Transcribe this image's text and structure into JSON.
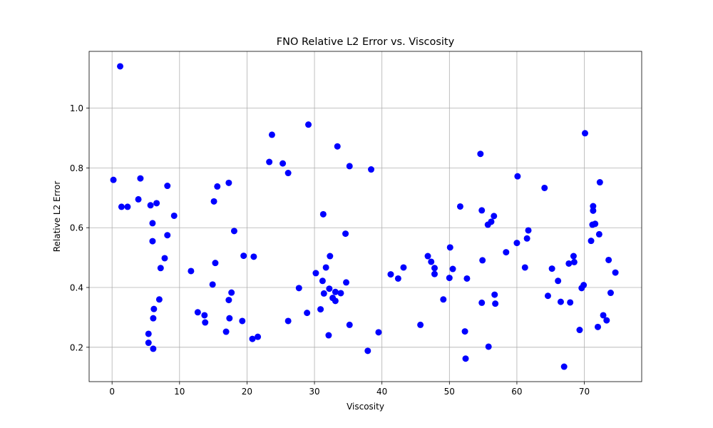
{
  "chart_data": {
    "type": "scatter",
    "title": "FNO Relative L2 Error vs. Viscosity",
    "xlabel": "Viscosity",
    "ylabel": "Relative L2 Error",
    "xlim": [
      -3.4,
      78.5
    ],
    "ylim": [
      0.085,
      1.19
    ],
    "xticks": [
      0,
      10,
      20,
      30,
      40,
      50,
      60,
      70
    ],
    "yticks": [
      0.2,
      0.4,
      0.6,
      0.8,
      1.0
    ],
    "xtick_labels": [
      "0",
      "10",
      "20",
      "30",
      "40",
      "50",
      "60",
      "70"
    ],
    "ytick_labels": [
      "0.2",
      "0.4",
      "0.6",
      "0.8",
      "1.0"
    ],
    "grid": true,
    "marker_color": "#0000ff",
    "points": [
      [
        0.2,
        0.76
      ],
      [
        1.2,
        1.14
      ],
      [
        1.4,
        0.67
      ],
      [
        2.3,
        0.67
      ],
      [
        3.9,
        0.695
      ],
      [
        4.2,
        0.765
      ],
      [
        5.4,
        0.245
      ],
      [
        5.4,
        0.215
      ],
      [
        5.7,
        0.675
      ],
      [
        6.0,
        0.615
      ],
      [
        6.0,
        0.555
      ],
      [
        6.1,
        0.195
      ],
      [
        6.1,
        0.297
      ],
      [
        6.2,
        0.328
      ],
      [
        6.6,
        0.682
      ],
      [
        7.0,
        0.36
      ],
      [
        7.2,
        0.465
      ],
      [
        7.8,
        0.498
      ],
      [
        8.2,
        0.74
      ],
      [
        8.2,
        0.575
      ],
      [
        9.2,
        0.64
      ],
      [
        11.7,
        0.455
      ],
      [
        12.7,
        0.317
      ],
      [
        13.7,
        0.307
      ],
      [
        13.8,
        0.283
      ],
      [
        14.9,
        0.41
      ],
      [
        15.1,
        0.688
      ],
      [
        15.3,
        0.482
      ],
      [
        15.6,
        0.738
      ],
      [
        16.9,
        0.252
      ],
      [
        17.3,
        0.75
      ],
      [
        17.3,
        0.358
      ],
      [
        17.4,
        0.297
      ],
      [
        17.7,
        0.383
      ],
      [
        18.1,
        0.589
      ],
      [
        19.3,
        0.288
      ],
      [
        19.5,
        0.506
      ],
      [
        20.8,
        0.228
      ],
      [
        21.0,
        0.503
      ],
      [
        21.6,
        0.235
      ],
      [
        23.3,
        0.82
      ],
      [
        23.7,
        0.911
      ],
      [
        25.3,
        0.815
      ],
      [
        26.1,
        0.783
      ],
      [
        26.1,
        0.288
      ],
      [
        27.7,
        0.398
      ],
      [
        28.9,
        0.315
      ],
      [
        29.1,
        0.945
      ],
      [
        30.2,
        0.448
      ],
      [
        30.9,
        0.327
      ],
      [
        31.2,
        0.422
      ],
      [
        31.3,
        0.645
      ],
      [
        31.4,
        0.38
      ],
      [
        31.7,
        0.467
      ],
      [
        32.1,
        0.24
      ],
      [
        32.2,
        0.396
      ],
      [
        32.3,
        0.505
      ],
      [
        32.7,
        0.365
      ],
      [
        33.1,
        0.385
      ],
      [
        33.1,
        0.355
      ],
      [
        33.4,
        0.872
      ],
      [
        33.9,
        0.381
      ],
      [
        34.6,
        0.58
      ],
      [
        34.7,
        0.417
      ],
      [
        35.2,
        0.806
      ],
      [
        35.2,
        0.275
      ],
      [
        37.9,
        0.188
      ],
      [
        38.4,
        0.795
      ],
      [
        39.5,
        0.25
      ],
      [
        41.3,
        0.444
      ],
      [
        42.4,
        0.43
      ],
      [
        43.2,
        0.467
      ],
      [
        45.7,
        0.275
      ],
      [
        46.8,
        0.505
      ],
      [
        47.3,
        0.486
      ],
      [
        47.8,
        0.465
      ],
      [
        47.8,
        0.445
      ],
      [
        49.1,
        0.36
      ],
      [
        50.0,
        0.432
      ],
      [
        50.1,
        0.534
      ],
      [
        50.5,
        0.462
      ],
      [
        51.6,
        0.671
      ],
      [
        52.3,
        0.253
      ],
      [
        52.4,
        0.162
      ],
      [
        52.6,
        0.43
      ],
      [
        54.6,
        0.847
      ],
      [
        54.8,
        0.658
      ],
      [
        54.8,
        0.349
      ],
      [
        54.9,
        0.491
      ],
      [
        55.7,
        0.61
      ],
      [
        55.8,
        0.202
      ],
      [
        56.2,
        0.62
      ],
      [
        56.6,
        0.639
      ],
      [
        56.7,
        0.376
      ],
      [
        56.8,
        0.346
      ],
      [
        58.4,
        0.518
      ],
      [
        60.0,
        0.549
      ],
      [
        60.1,
        0.772
      ],
      [
        61.2,
        0.467
      ],
      [
        61.5,
        0.564
      ],
      [
        61.7,
        0.591
      ],
      [
        64.1,
        0.733
      ],
      [
        64.6,
        0.372
      ],
      [
        65.2,
        0.463
      ],
      [
        66.1,
        0.422
      ],
      [
        66.5,
        0.352
      ],
      [
        67.0,
        0.135
      ],
      [
        67.7,
        0.48
      ],
      [
        67.9,
        0.35
      ],
      [
        68.4,
        0.505
      ],
      [
        68.5,
        0.485
      ],
      [
        69.3,
        0.258
      ],
      [
        69.6,
        0.398
      ],
      [
        69.9,
        0.408
      ],
      [
        70.1,
        0.916
      ],
      [
        71.0,
        0.556
      ],
      [
        71.2,
        0.61
      ],
      [
        71.3,
        0.657
      ],
      [
        71.3,
        0.672
      ],
      [
        71.6,
        0.613
      ],
      [
        72.0,
        0.268
      ],
      [
        72.2,
        0.578
      ],
      [
        72.3,
        0.752
      ],
      [
        72.8,
        0.307
      ],
      [
        73.3,
        0.29
      ],
      [
        73.6,
        0.492
      ],
      [
        73.9,
        0.382
      ],
      [
        74.6,
        0.45
      ]
    ]
  }
}
